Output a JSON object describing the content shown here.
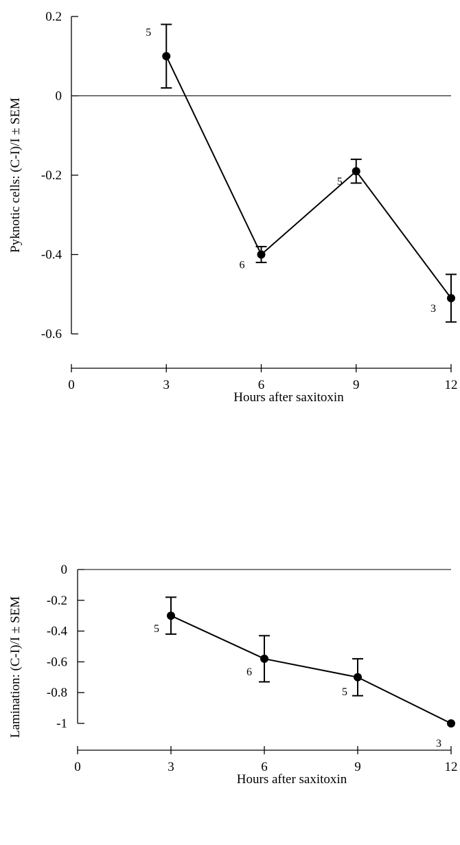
{
  "chart_data": [
    {
      "type": "line",
      "title": "",
      "xlabel": "Hours after saxitoxin",
      "ylabel": "Pyknotic cells: (C-I)/I ± SEM",
      "xlim": [
        0,
        12
      ],
      "ylim": [
        -0.6,
        0.2
      ],
      "x_ticks": [
        "0",
        "3",
        "6",
        "9",
        "12"
      ],
      "y_ticks": [
        "0.2",
        "0",
        "-0.2",
        "-0.4",
        "-0.6"
      ],
      "reference_line_y": 0,
      "grid": false,
      "legend": "none",
      "series": [
        {
          "x": [
            3,
            6,
            9,
            12
          ],
          "y": [
            0.1,
            -0.4,
            -0.19,
            -0.51
          ],
          "sem": [
            0.08,
            0.02,
            0.03,
            0.06
          ],
          "n": [
            "5",
            "6",
            "5",
            "3"
          ]
        }
      ]
    },
    {
      "type": "line",
      "title": "",
      "xlabel": "Hours after saxitoxin",
      "ylabel": "Lamination: (C-I)/I ± SEM",
      "xlim": [
        0,
        12
      ],
      "ylim": [
        -1,
        0
      ],
      "x_ticks": [
        "0",
        "3",
        "6",
        "9",
        "12"
      ],
      "y_ticks": [
        "0",
        "-0.2",
        "-0.4",
        "-0.6",
        "-0.8",
        "-1"
      ],
      "reference_line_y": 0,
      "grid": false,
      "legend": "none",
      "series": [
        {
          "x": [
            3,
            6,
            9,
            12
          ],
          "y": [
            -0.3,
            -0.58,
            -0.7,
            -1.0
          ],
          "sem": [
            0.12,
            0.15,
            0.12,
            0.0
          ],
          "n": [
            "5",
            "6",
            "5",
            "3"
          ]
        }
      ]
    }
  ]
}
